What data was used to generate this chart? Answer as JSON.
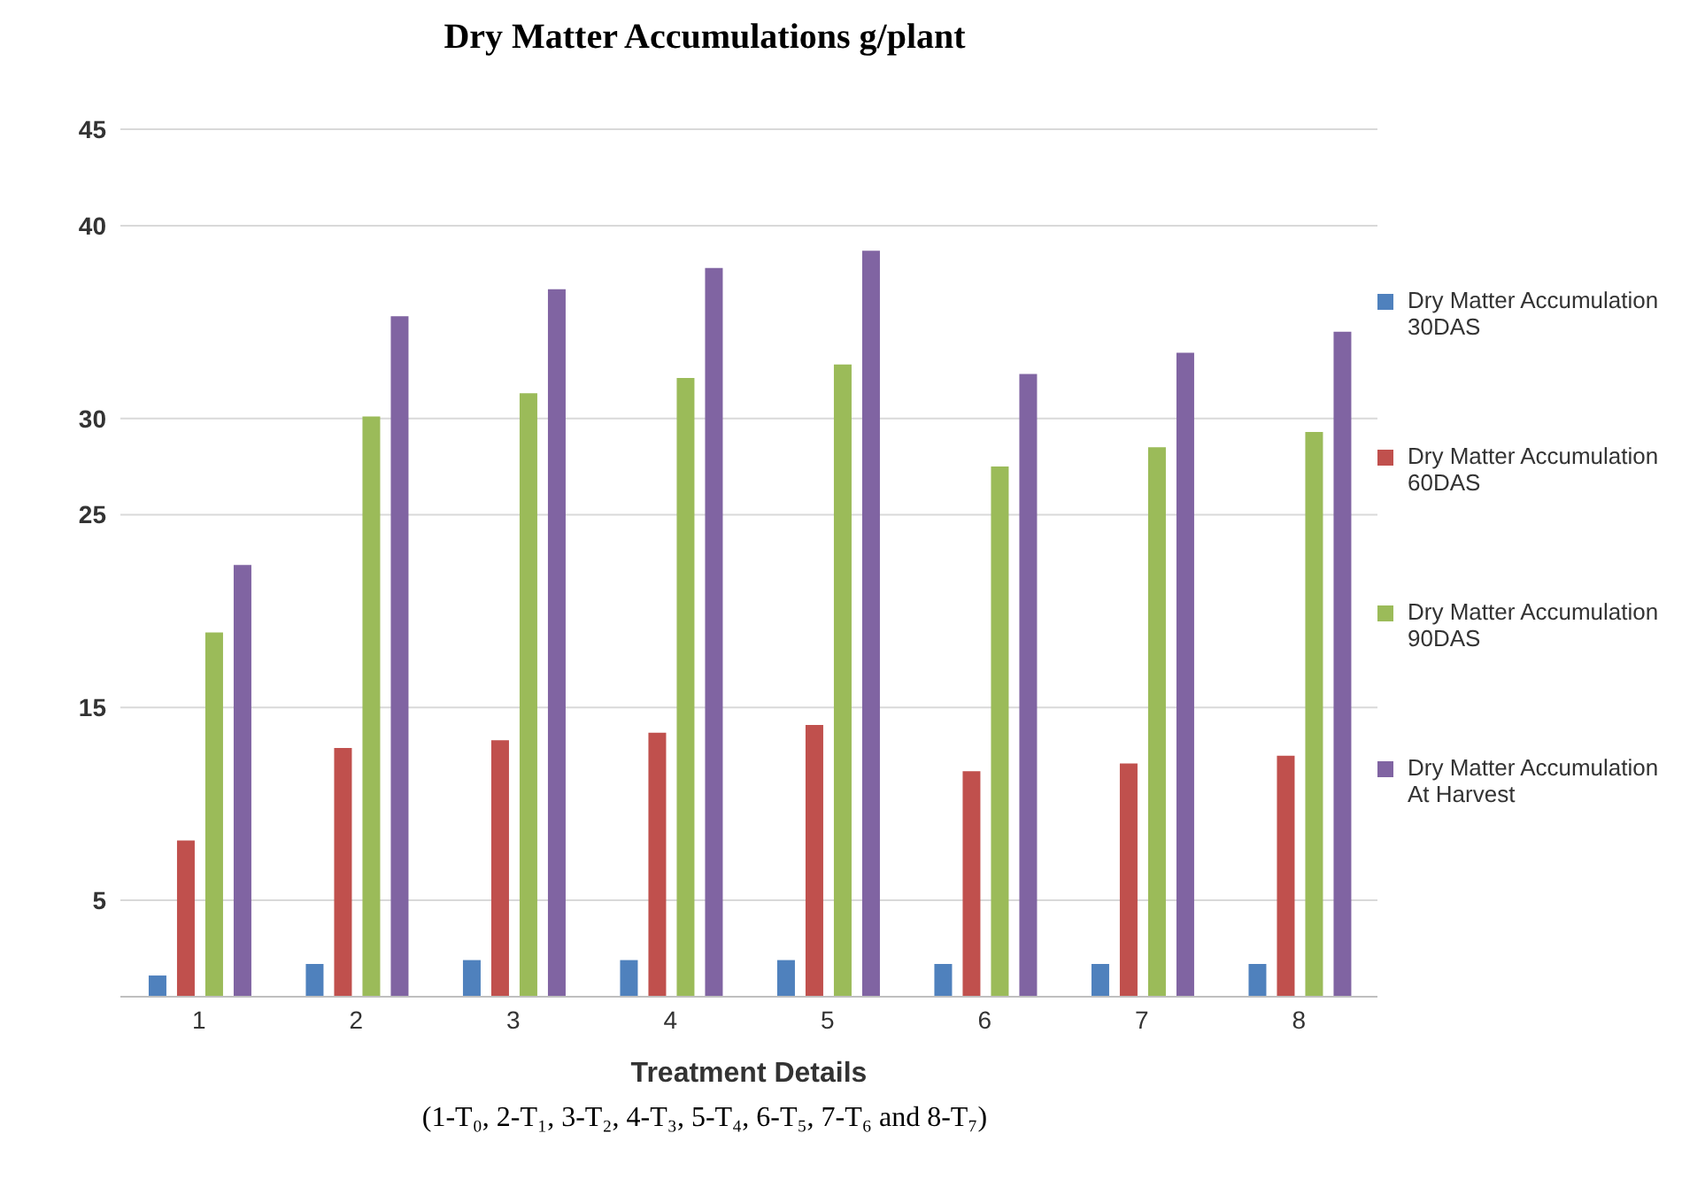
{
  "chart_data": {
    "type": "bar",
    "title": "Dry Matter Accumulations g/plant",
    "xlabel": "Treatment Details",
    "categories": [
      "1",
      "2",
      "3",
      "4",
      "5",
      "6",
      "7",
      "8"
    ],
    "series": [
      {
        "name": "Dry Matter Accumulation 30DAS",
        "color": "#4f81bd",
        "values": [
          1.1,
          1.7,
          1.9,
          1.9,
          1.9,
          1.7,
          1.7,
          1.7
        ]
      },
      {
        "name": "Dry Matter Accumulation 60DAS",
        "color": "#c0504d",
        "values": [
          8.1,
          12.9,
          13.3,
          13.7,
          14.1,
          11.7,
          12.1,
          12.5
        ]
      },
      {
        "name": "Dry Matter Accumulation 90DAS",
        "color": "#9bbb59",
        "values": [
          18.9,
          30.1,
          31.3,
          32.1,
          32.8,
          27.5,
          28.5,
          29.3
        ]
      },
      {
        "name": "Dry Matter Accumulation At Harvest",
        "color": "#8064a2",
        "values": [
          22.4,
          35.3,
          36.7,
          37.8,
          38.7,
          32.3,
          33.4,
          34.5
        ]
      }
    ],
    "ylim": [
      0,
      45
    ],
    "yticks": [
      5,
      15,
      25,
      30,
      40,
      45
    ],
    "grid": "y",
    "legend": "right",
    "annotations": [
      "(1-T₀, 2-T₁, 3-T₂, 4-T₃, 5-T₄, 6-T₅, 7-T₆ and 8-T₇)"
    ]
  }
}
